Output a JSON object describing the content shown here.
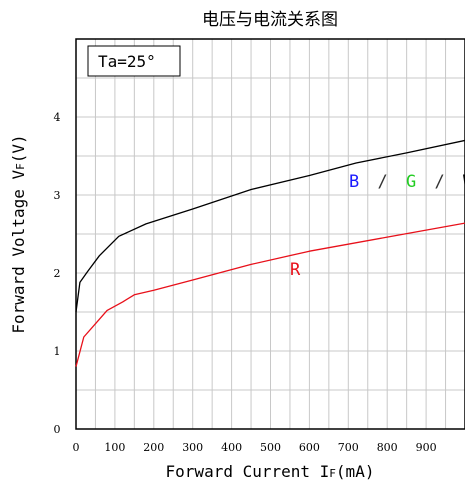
{
  "chart_data": {
    "type": "line",
    "title": "电压与电流关系图",
    "xlabel": "Forward Current I",
    "xlabel_sub": "F",
    "xlabel_unit": "(mA)",
    "ylabel": "Forward Voltage V",
    "ylabel_sub": "F",
    "ylabel_unit": "(V)",
    "xlim": [
      0,
      1000
    ],
    "ylim": [
      0,
      5
    ],
    "xticks": [
      0,
      100,
      200,
      300,
      400,
      500,
      600,
      700,
      800,
      900
    ],
    "yticks": [
      0,
      1,
      2,
      3,
      4
    ],
    "grid": true,
    "annotation": "Ta=25°",
    "series": [
      {
        "name": "B / G / W",
        "color": "#000000",
        "x": [
          0,
          10,
          30,
          60,
          110,
          180,
          300,
          450,
          600,
          720,
          850,
          1000
        ],
        "y": [
          1.5,
          1.88,
          2.02,
          2.22,
          2.47,
          2.63,
          2.82,
          3.07,
          3.25,
          3.41,
          3.54,
          3.7
        ]
      },
      {
        "name": "R",
        "color": "#e8101a",
        "x": [
          0,
          20,
          50,
          80,
          120,
          150,
          200,
          300,
          450,
          600,
          800,
          1000
        ],
        "y": [
          0.8,
          1.18,
          1.35,
          1.52,
          1.63,
          1.72,
          1.78,
          1.91,
          2.11,
          2.28,
          2.46,
          2.64
        ]
      }
    ],
    "series_labels": [
      {
        "parts": [
          {
            "text": "B",
            "color": "#1a1aff"
          },
          {
            "text": "/",
            "color": "#333333"
          },
          {
            "text": "G",
            "color": "#22cc22"
          },
          {
            "text": "/",
            "color": "#333333"
          },
          {
            "text": "W",
            "color": "#000000"
          }
        ]
      },
      {
        "parts": [
          {
            "text": "R",
            "color": "#e8101a"
          }
        ]
      }
    ]
  }
}
